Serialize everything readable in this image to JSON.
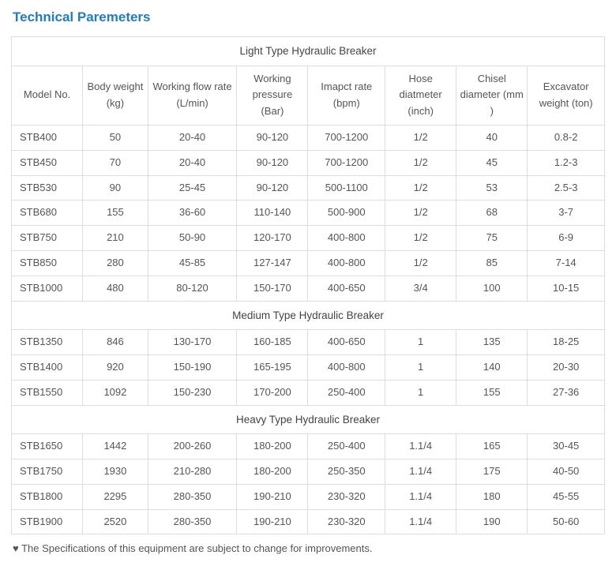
{
  "heading": "Technical Paremeters",
  "columns": [
    "Model No.",
    "Body weight (kg)",
    "Working flow rate (L/min)",
    "Working pressure (Bar)",
    "Imapct rate (bpm)",
    "Hose diatmeter (inch)",
    "Chisel diameter (mm )",
    "Excavator weight (ton)"
  ],
  "col_widths_pct": [
    12,
    11,
    15,
    12,
    13,
    12,
    12,
    13
  ],
  "groups": [
    {
      "title": "Light Type Hydraulic Breaker",
      "rows": [
        [
          "STB400",
          "50",
          "20-40",
          "90-120",
          "700-1200",
          "1/2",
          "40",
          "0.8-2"
        ],
        [
          "STB450",
          "70",
          "20-40",
          "90-120",
          "700-1200",
          "1/2",
          "45",
          "1.2-3"
        ],
        [
          "STB530",
          "90",
          "25-45",
          "90-120",
          "500-1100",
          "1/2",
          "53",
          "2.5-3"
        ],
        [
          "STB680",
          "155",
          "36-60",
          "110-140",
          "500-900",
          "1/2",
          "68",
          "3-7"
        ],
        [
          "STB750",
          "210",
          "50-90",
          "120-170",
          "400-800",
          "1/2",
          "75",
          "6-9"
        ],
        [
          "STB850",
          "280",
          "45-85",
          "127-147",
          "400-800",
          "1/2",
          "85",
          "7-14"
        ],
        [
          "STB1000",
          "480",
          "80-120",
          "150-170",
          "400-650",
          "3/4",
          "100",
          "10-15"
        ]
      ]
    },
    {
      "title": "Medium Type Hydraulic Breaker",
      "rows": [
        [
          "STB1350",
          "846",
          "130-170",
          "160-185",
          "400-650",
          "1",
          "135",
          "18-25"
        ],
        [
          "STB1400",
          "920",
          "150-190",
          "165-195",
          "400-800",
          "1",
          "140",
          "20-30"
        ],
        [
          "STB1550",
          "1092",
          "150-230",
          "170-200",
          "250-400",
          "1",
          "155",
          "27-36"
        ]
      ]
    },
    {
      "title": "Heavy Type Hydraulic Breaker",
      "rows": [
        [
          "STB1650",
          "1442",
          "200-260",
          "180-200",
          "250-400",
          "1.1/4",
          "165",
          "30-45"
        ],
        [
          "STB1750",
          "1930",
          "210-280",
          "180-200",
          "250-350",
          "1.1/4",
          "175",
          "40-50"
        ],
        [
          "STB1800",
          "2295",
          "280-350",
          "190-210",
          "230-320",
          "1.1/4",
          "180",
          "45-55"
        ],
        [
          "STB1900",
          "2520",
          "280-350",
          "190-210",
          "230-320",
          "1.1/4",
          "190",
          "50-60"
        ]
      ]
    }
  ],
  "footnote": "♥ The Specifications of this equipment are subject to change for improvements.",
  "colors": {
    "heading": "#1e7dc4",
    "border": "#dddddd",
    "text": "#555555",
    "background": "#ffffff"
  }
}
